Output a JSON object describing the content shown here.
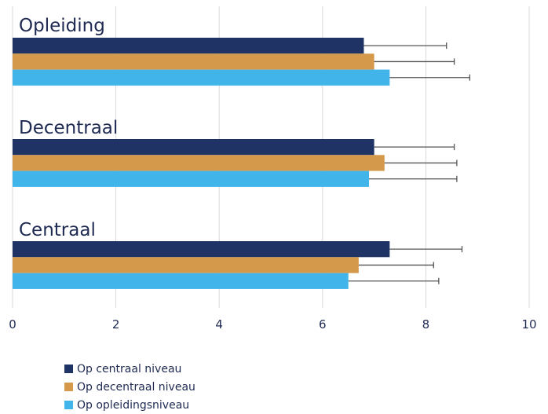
{
  "chart_data": {
    "type": "bar",
    "orientation": "horizontal",
    "groups": [
      "Opleiding",
      "Decentraal",
      "Centraal"
    ],
    "series": [
      {
        "name": "Op centraal niveau",
        "color": "#1f3464",
        "values": [
          6.8,
          7.0,
          7.3
        ],
        "errors": [
          1.6,
          1.55,
          1.4
        ]
      },
      {
        "name": "Op decentraal niveau",
        "color": "#d4994a",
        "values": [
          7.0,
          7.2,
          6.7
        ],
        "errors": [
          1.55,
          1.4,
          1.45
        ]
      },
      {
        "name": "Op opleidingsniveau",
        "color": "#41b4ea",
        "values": [
          7.3,
          6.9,
          6.5
        ],
        "errors": [
          1.55,
          1.7,
          1.75
        ]
      }
    ],
    "xlim": [
      0,
      10
    ],
    "xticks": [
      "0",
      "2",
      "4",
      "6",
      "8",
      "10"
    ],
    "grid": true,
    "legend_position": "bottom"
  }
}
